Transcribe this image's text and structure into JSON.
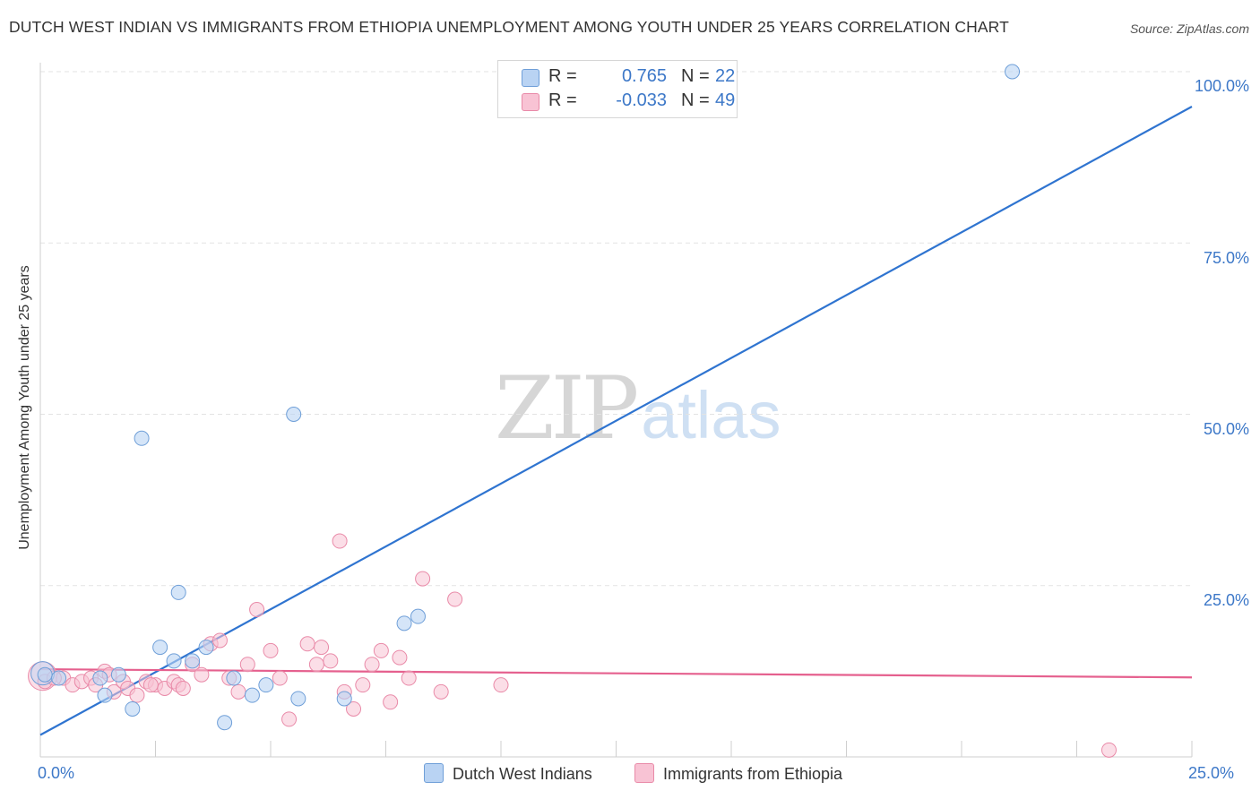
{
  "header": {
    "title": "DUTCH WEST INDIAN VS IMMIGRANTS FROM ETHIOPIA UNEMPLOYMENT AMONG YOUTH UNDER 25 YEARS CORRELATION CHART",
    "source": "Source: ZipAtlas.com"
  },
  "watermark": {
    "zip": "ZIP",
    "atlas": "atlas"
  },
  "legend": {
    "series1": {
      "r_label": "R =",
      "r_value": "0.765",
      "n_label": "N =",
      "n_value": "22"
    },
    "series2": {
      "r_label": "R =",
      "r_value": "-0.033",
      "n_label": "N =",
      "n_value": "49"
    }
  },
  "colors": {
    "blue_fill": "#b9d3f3",
    "blue_stroke": "#6f9fd8",
    "blue_line": "#2f74d0",
    "pink_fill": "#f8c3d4",
    "pink_stroke": "#e98aa8",
    "pink_line": "#e5608e",
    "grid": "#e3e3e3",
    "tick_text": "#3d78c8"
  },
  "chart_data": {
    "type": "scatter",
    "title": "DUTCH WEST INDIAN VS IMMIGRANTS FROM ETHIOPIA UNEMPLOYMENT AMONG YOUTH UNDER 25 YEARS CORRELATION CHART",
    "xlabel": "",
    "ylabel": "Unemployment Among Youth under 25 years",
    "xlim": [
      0,
      25
    ],
    "ylim": [
      0,
      102
    ],
    "x_tick_labels": [
      "0.0%",
      "25.0%"
    ],
    "y_ticks": [
      25,
      50,
      75,
      100
    ],
    "y_tick_labels": [
      "25.0%",
      "50.0%",
      "75.0%",
      "100.0%"
    ],
    "legend_position": "top-center",
    "series": [
      {
        "name": "Dutch West Indians",
        "color": "#b9d3f3",
        "r": 0.765,
        "n": 22,
        "trend": {
          "x": [
            0,
            25
          ],
          "y": [
            3.2,
            94.9
          ]
        },
        "points": [
          [
            0.1,
            12.0
          ],
          [
            0.4,
            11.5
          ],
          [
            1.3,
            11.5
          ],
          [
            1.4,
            9.0
          ],
          [
            1.7,
            12.0
          ],
          [
            2.0,
            7.0
          ],
          [
            2.2,
            46.5
          ],
          [
            2.6,
            16.0
          ],
          [
            3.0,
            24.0
          ],
          [
            3.3,
            14.0
          ],
          [
            3.6,
            16.0
          ],
          [
            4.0,
            5.0
          ],
          [
            4.2,
            11.5
          ],
          [
            4.6,
            9.0
          ],
          [
            4.9,
            10.5
          ],
          [
            5.5,
            50.0
          ],
          [
            5.6,
            8.5
          ],
          [
            6.6,
            8.5
          ],
          [
            7.9,
            19.5
          ],
          [
            8.2,
            20.5
          ],
          [
            21.1,
            100.0
          ],
          [
            2.9,
            14.0
          ]
        ]
      },
      {
        "name": "Immigrants from Ethiopia",
        "color": "#f8c3d4",
        "r": -0.033,
        "n": 49,
        "trend": {
          "x": [
            0,
            25
          ],
          "y": [
            12.8,
            11.6
          ]
        },
        "points": [
          [
            0.1,
            11.0
          ],
          [
            0.5,
            11.5
          ],
          [
            0.7,
            10.5
          ],
          [
            0.9,
            11.0
          ],
          [
            1.1,
            11.5
          ],
          [
            1.2,
            10.5
          ],
          [
            1.4,
            12.5
          ],
          [
            1.6,
            9.5
          ],
          [
            1.8,
            11.0
          ],
          [
            1.9,
            10.0
          ],
          [
            2.1,
            9.0
          ],
          [
            2.3,
            11.0
          ],
          [
            2.5,
            10.5
          ],
          [
            2.7,
            10.0
          ],
          [
            2.9,
            11.0
          ],
          [
            3.0,
            10.5
          ],
          [
            3.1,
            10.0
          ],
          [
            3.3,
            13.5
          ],
          [
            3.5,
            12.0
          ],
          [
            3.7,
            16.5
          ],
          [
            3.9,
            17.0
          ],
          [
            4.1,
            11.5
          ],
          [
            4.3,
            9.5
          ],
          [
            4.5,
            13.5
          ],
          [
            4.7,
            21.5
          ],
          [
            5.0,
            15.5
          ],
          [
            5.2,
            11.5
          ],
          [
            5.4,
            5.5
          ],
          [
            5.8,
            16.5
          ],
          [
            6.0,
            13.5
          ],
          [
            6.1,
            16.0
          ],
          [
            6.3,
            14.0
          ],
          [
            6.5,
            31.5
          ],
          [
            6.6,
            9.5
          ],
          [
            6.8,
            7.0
          ],
          [
            7.0,
            10.5
          ],
          [
            7.2,
            13.5
          ],
          [
            7.4,
            15.5
          ],
          [
            7.6,
            8.0
          ],
          [
            7.8,
            14.5
          ],
          [
            8.0,
            11.5
          ],
          [
            8.3,
            26.0
          ],
          [
            8.7,
            9.5
          ],
          [
            9.0,
            23.0
          ],
          [
            10.0,
            10.5
          ],
          [
            23.2,
            1.0
          ],
          [
            0.3,
            11.5
          ],
          [
            2.4,
            10.5
          ],
          [
            1.5,
            12.0
          ]
        ]
      }
    ]
  },
  "bottom_legend": {
    "series1_label": "Dutch West Indians",
    "series2_label": "Immigrants from Ethiopia"
  }
}
